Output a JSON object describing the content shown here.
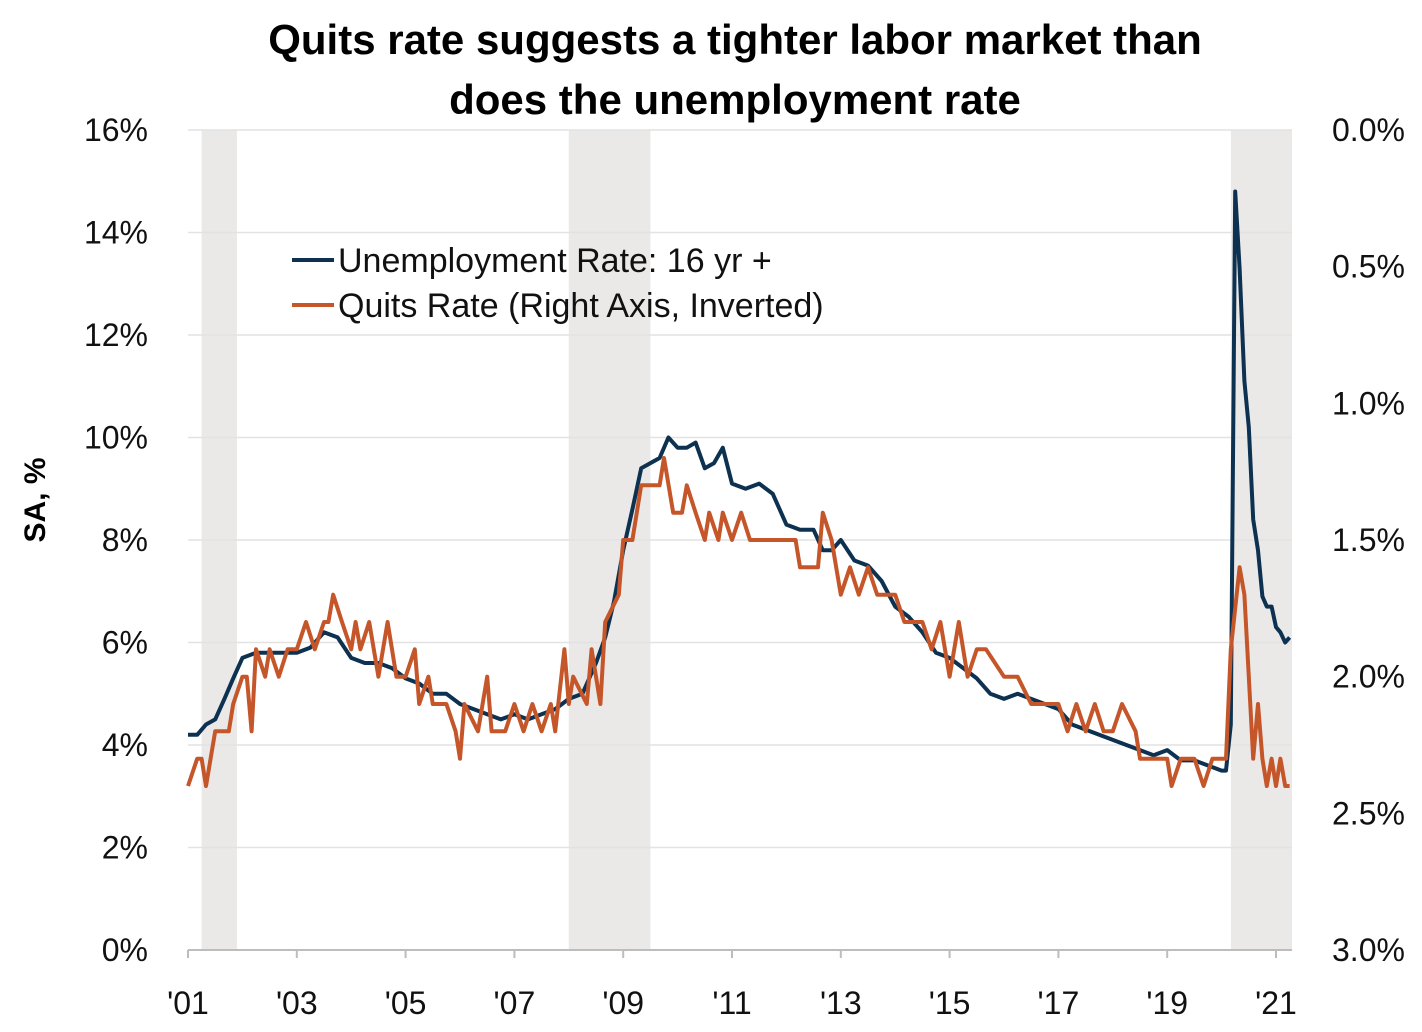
{
  "chart_data": {
    "type": "line",
    "title": "Quits rate suggests a tighter labor market than does the unemployment rate",
    "title_lines": [
      "Quits rate suggests a tighter labor market than",
      "does the unemployment rate"
    ],
    "ylabel": "SA, %",
    "xlabel": "",
    "xlim": [
      2001.0,
      2021.3
    ],
    "ylim": [
      0,
      16
    ],
    "y2lim": [
      0.0,
      3.0
    ],
    "y2_inverted": true,
    "x_ticks": [
      2001,
      2003,
      2005,
      2007,
      2009,
      2011,
      2013,
      2015,
      2017,
      2019,
      2021
    ],
    "x_tick_labels": [
      "'01",
      "'03",
      "'05",
      "'07",
      "'09",
      "'11",
      "'13",
      "'15",
      "'17",
      "'19",
      "'21"
    ],
    "y_ticks": [
      0,
      2,
      4,
      6,
      8,
      10,
      12,
      14,
      16
    ],
    "y_tick_labels": [
      "0%",
      "2%",
      "4%",
      "6%",
      "8%",
      "10%",
      "12%",
      "14%",
      "16%"
    ],
    "y2_ticks": [
      0,
      0.5,
      1.0,
      1.5,
      2.0,
      2.5,
      3.0
    ],
    "y2_tick_labels": [
      "0.0%",
      "0.5%",
      "1.0%",
      "1.5%",
      "2.0%",
      "2.5%",
      "3.0%"
    ],
    "grid": true,
    "legend_position": "top-left",
    "recessions": [
      [
        2001.25,
        2001.9
      ],
      [
        2008.0,
        2009.5
      ],
      [
        2020.17,
        2021.3
      ]
    ],
    "series": [
      {
        "name": "Unemployment Rate: 16 yr +",
        "axis": "left",
        "color": "#0d3150",
        "points": [
          [
            2001.0,
            4.2
          ],
          [
            2001.17,
            4.2
          ],
          [
            2001.33,
            4.4
          ],
          [
            2001.5,
            4.5
          ],
          [
            2001.67,
            4.9
          ],
          [
            2001.83,
            5.3
          ],
          [
            2002.0,
            5.7
          ],
          [
            2002.25,
            5.8
          ],
          [
            2002.5,
            5.8
          ],
          [
            2002.75,
            5.8
          ],
          [
            2003.0,
            5.8
          ],
          [
            2003.25,
            5.9
          ],
          [
            2003.5,
            6.2
          ],
          [
            2003.75,
            6.1
          ],
          [
            2004.0,
            5.7
          ],
          [
            2004.25,
            5.6
          ],
          [
            2004.5,
            5.6
          ],
          [
            2004.75,
            5.5
          ],
          [
            2005.0,
            5.3
          ],
          [
            2005.25,
            5.2
          ],
          [
            2005.5,
            5.0
          ],
          [
            2005.75,
            5.0
          ],
          [
            2006.0,
            4.8
          ],
          [
            2006.25,
            4.7
          ],
          [
            2006.5,
            4.6
          ],
          [
            2006.75,
            4.5
          ],
          [
            2007.0,
            4.6
          ],
          [
            2007.25,
            4.5
          ],
          [
            2007.5,
            4.6
          ],
          [
            2007.75,
            4.7
          ],
          [
            2008.0,
            4.9
          ],
          [
            2008.25,
            5.0
          ],
          [
            2008.5,
            5.6
          ],
          [
            2008.67,
            6.1
          ],
          [
            2008.83,
            6.8
          ],
          [
            2009.0,
            7.8
          ],
          [
            2009.17,
            8.6
          ],
          [
            2009.33,
            9.4
          ],
          [
            2009.5,
            9.5
          ],
          [
            2009.67,
            9.6
          ],
          [
            2009.83,
            10.0
          ],
          [
            2010.0,
            9.8
          ],
          [
            2010.17,
            9.8
          ],
          [
            2010.33,
            9.9
          ],
          [
            2010.5,
            9.4
          ],
          [
            2010.67,
            9.5
          ],
          [
            2010.83,
            9.8
          ],
          [
            2011.0,
            9.1
          ],
          [
            2011.25,
            9.0
          ],
          [
            2011.5,
            9.1
          ],
          [
            2011.75,
            8.9
          ],
          [
            2012.0,
            8.3
          ],
          [
            2012.25,
            8.2
          ],
          [
            2012.5,
            8.2
          ],
          [
            2012.67,
            7.8
          ],
          [
            2012.83,
            7.8
          ],
          [
            2013.0,
            8.0
          ],
          [
            2013.25,
            7.6
          ],
          [
            2013.5,
            7.5
          ],
          [
            2013.75,
            7.2
          ],
          [
            2014.0,
            6.7
          ],
          [
            2014.25,
            6.5
          ],
          [
            2014.5,
            6.2
          ],
          [
            2014.75,
            5.8
          ],
          [
            2015.0,
            5.7
          ],
          [
            2015.25,
            5.5
          ],
          [
            2015.5,
            5.3
          ],
          [
            2015.75,
            5.0
          ],
          [
            2016.0,
            4.9
          ],
          [
            2016.25,
            5.0
          ],
          [
            2016.5,
            4.9
          ],
          [
            2016.75,
            4.8
          ],
          [
            2017.0,
            4.7
          ],
          [
            2017.25,
            4.4
          ],
          [
            2017.5,
            4.3
          ],
          [
            2017.75,
            4.2
          ],
          [
            2018.0,
            4.1
          ],
          [
            2018.25,
            4.0
          ],
          [
            2018.5,
            3.9
          ],
          [
            2018.75,
            3.8
          ],
          [
            2019.0,
            3.9
          ],
          [
            2019.25,
            3.7
          ],
          [
            2019.5,
            3.7
          ],
          [
            2019.75,
            3.6
          ],
          [
            2020.0,
            3.5
          ],
          [
            2020.08,
            3.5
          ],
          [
            2020.17,
            4.4
          ],
          [
            2020.25,
            14.8
          ],
          [
            2020.33,
            13.3
          ],
          [
            2020.42,
            11.1
          ],
          [
            2020.5,
            10.2
          ],
          [
            2020.58,
            8.4
          ],
          [
            2020.67,
            7.8
          ],
          [
            2020.75,
            6.9
          ],
          [
            2020.83,
            6.7
          ],
          [
            2020.92,
            6.7
          ],
          [
            2021.0,
            6.3
          ],
          [
            2021.08,
            6.2
          ],
          [
            2021.17,
            6.0
          ],
          [
            2021.25,
            6.1
          ]
        ]
      },
      {
        "name": "Quits Rate (Right Axis, Inverted)",
        "axis": "right",
        "color": "#c5562a",
        "points": [
          [
            2001.0,
            2.4
          ],
          [
            2001.17,
            2.3
          ],
          [
            2001.25,
            2.3
          ],
          [
            2001.33,
            2.4
          ],
          [
            2001.5,
            2.2
          ],
          [
            2001.75,
            2.2
          ],
          [
            2001.83,
            2.1
          ],
          [
            2002.0,
            2.0
          ],
          [
            2002.08,
            2.0
          ],
          [
            2002.17,
            2.2
          ],
          [
            2002.25,
            1.9
          ],
          [
            2002.42,
            2.0
          ],
          [
            2002.5,
            1.9
          ],
          [
            2002.67,
            2.0
          ],
          [
            2002.83,
            1.9
          ],
          [
            2003.0,
            1.9
          ],
          [
            2003.17,
            1.8
          ],
          [
            2003.33,
            1.9
          ],
          [
            2003.5,
            1.8
          ],
          [
            2003.58,
            1.8
          ],
          [
            2003.67,
            1.7
          ],
          [
            2003.83,
            1.8
          ],
          [
            2004.0,
            1.9
          ],
          [
            2004.08,
            1.8
          ],
          [
            2004.17,
            1.9
          ],
          [
            2004.33,
            1.8
          ],
          [
            2004.5,
            2.0
          ],
          [
            2004.67,
            1.8
          ],
          [
            2004.83,
            2.0
          ],
          [
            2005.0,
            2.0
          ],
          [
            2005.17,
            1.9
          ],
          [
            2005.25,
            2.1
          ],
          [
            2005.42,
            2.0
          ],
          [
            2005.5,
            2.1
          ],
          [
            2005.75,
            2.1
          ],
          [
            2005.92,
            2.2
          ],
          [
            2006.0,
            2.3
          ],
          [
            2006.08,
            2.1
          ],
          [
            2006.33,
            2.2
          ],
          [
            2006.5,
            2.0
          ],
          [
            2006.58,
            2.2
          ],
          [
            2006.83,
            2.2
          ],
          [
            2007.0,
            2.1
          ],
          [
            2007.17,
            2.2
          ],
          [
            2007.33,
            2.1
          ],
          [
            2007.5,
            2.2
          ],
          [
            2007.67,
            2.1
          ],
          [
            2007.75,
            2.2
          ],
          [
            2007.92,
            1.9
          ],
          [
            2008.0,
            2.1
          ],
          [
            2008.08,
            2.0
          ],
          [
            2008.33,
            2.1
          ],
          [
            2008.42,
            1.9
          ],
          [
            2008.58,
            2.1
          ],
          [
            2008.67,
            1.8
          ],
          [
            2008.92,
            1.7
          ],
          [
            2009.0,
            1.5
          ],
          [
            2009.17,
            1.5
          ],
          [
            2009.33,
            1.3
          ],
          [
            2009.5,
            1.3
          ],
          [
            2009.67,
            1.3
          ],
          [
            2009.75,
            1.2
          ],
          [
            2009.92,
            1.4
          ],
          [
            2010.08,
            1.4
          ],
          [
            2010.17,
            1.3
          ],
          [
            2010.33,
            1.4
          ],
          [
            2010.5,
            1.5
          ],
          [
            2010.58,
            1.4
          ],
          [
            2010.75,
            1.5
          ],
          [
            2010.83,
            1.4
          ],
          [
            2011.0,
            1.5
          ],
          [
            2011.17,
            1.4
          ],
          [
            2011.33,
            1.5
          ],
          [
            2011.5,
            1.5
          ],
          [
            2012.0,
            1.5
          ],
          [
            2012.17,
            1.5
          ],
          [
            2012.25,
            1.6
          ],
          [
            2012.58,
            1.6
          ],
          [
            2012.67,
            1.4
          ],
          [
            2012.83,
            1.5
          ],
          [
            2013.0,
            1.7
          ],
          [
            2013.17,
            1.6
          ],
          [
            2013.33,
            1.7
          ],
          [
            2013.5,
            1.6
          ],
          [
            2013.67,
            1.7
          ],
          [
            2014.0,
            1.7
          ],
          [
            2014.17,
            1.8
          ],
          [
            2014.5,
            1.8
          ],
          [
            2014.67,
            1.9
          ],
          [
            2014.83,
            1.8
          ],
          [
            2015.0,
            2.0
          ],
          [
            2015.17,
            1.8
          ],
          [
            2015.33,
            2.0
          ],
          [
            2015.5,
            1.9
          ],
          [
            2015.67,
            1.9
          ],
          [
            2016.0,
            2.0
          ],
          [
            2016.25,
            2.0
          ],
          [
            2016.5,
            2.1
          ],
          [
            2016.75,
            2.1
          ],
          [
            2017.0,
            2.1
          ],
          [
            2017.17,
            2.2
          ],
          [
            2017.33,
            2.1
          ],
          [
            2017.5,
            2.2
          ],
          [
            2017.67,
            2.1
          ],
          [
            2017.83,
            2.2
          ],
          [
            2018.0,
            2.2
          ],
          [
            2018.17,
            2.1
          ],
          [
            2018.42,
            2.2
          ],
          [
            2018.5,
            2.3
          ],
          [
            2018.75,
            2.3
          ],
          [
            2019.0,
            2.3
          ],
          [
            2019.08,
            2.4
          ],
          [
            2019.25,
            2.3
          ],
          [
            2019.5,
            2.3
          ],
          [
            2019.67,
            2.4
          ],
          [
            2019.83,
            2.3
          ],
          [
            2020.0,
            2.3
          ],
          [
            2020.08,
            2.3
          ],
          [
            2020.17,
            1.9
          ],
          [
            2020.33,
            1.6
          ],
          [
            2020.42,
            1.7
          ],
          [
            2020.58,
            2.3
          ],
          [
            2020.67,
            2.1
          ],
          [
            2020.75,
            2.3
          ],
          [
            2020.83,
            2.4
          ],
          [
            2020.92,
            2.3
          ],
          [
            2021.0,
            2.4
          ],
          [
            2021.08,
            2.3
          ],
          [
            2021.17,
            2.4
          ],
          [
            2021.25,
            2.4
          ]
        ]
      }
    ]
  }
}
